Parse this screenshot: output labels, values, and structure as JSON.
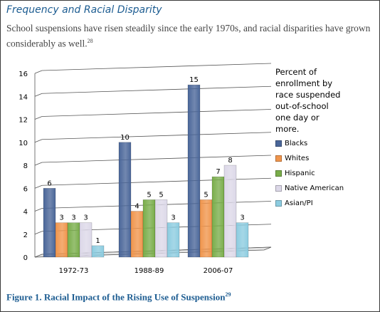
{
  "header": {
    "title": "Frequency and Racial Disparity",
    "lead": "School suspensions have risen steadily since the early 1970s, and racial disparities have grown considerably as well.",
    "lead_note": "28"
  },
  "caption": {
    "text": "Figure 1. Racial Impact of the Rising Use of Suspension",
    "note": "29"
  },
  "legend_title": "Percent of\nenrollment by\nrace suspended\nout-of-school\none day or\nmore.",
  "chart_data": {
    "type": "bar",
    "categories": [
      "1972-73",
      "1988-89",
      "2006-07"
    ],
    "series": [
      {
        "name": "Blacks",
        "values": [
          6,
          10,
          15
        ],
        "color": "#4a6699"
      },
      {
        "name": "Whites",
        "values": [
          3,
          4,
          5
        ],
        "color": "#f0954c"
      },
      {
        "name": "Hispanic",
        "values": [
          3,
          5,
          7
        ],
        "color": "#79ad4a"
      },
      {
        "name": "Native American",
        "values": [
          3,
          5,
          8
        ],
        "color": "#dcd8e8"
      },
      {
        "name": "Asian/PI",
        "values": [
          1,
          3,
          3
        ],
        "color": "#8ccce0"
      }
    ],
    "ylim": [
      0,
      16
    ],
    "yticks": [
      0,
      2,
      4,
      6,
      8,
      10,
      12,
      14,
      16
    ],
    "grid": true,
    "legend_position": "right"
  }
}
